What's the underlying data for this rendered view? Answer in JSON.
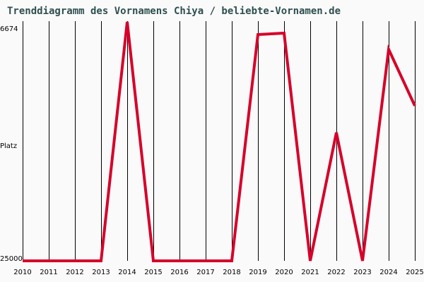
{
  "title": "Trenddiagramm des Vornamens Chiya / beliebte-Vornamen.de",
  "y_axis": {
    "top_label": "6674",
    "mid_label": "Platz",
    "bottom_label": "25000"
  },
  "colors": {
    "line": "#d6002a",
    "grid": "#000000",
    "title": "#2f4f4f",
    "background": "#fafafa"
  },
  "chart_data": {
    "type": "line",
    "title": "Trenddiagramm des Vornamens Chiya / beliebte-Vornamen.de",
    "xlabel": "",
    "ylabel": "Platz",
    "ylim": [
      25000,
      6674
    ],
    "y_inverted": true,
    "grid": "vertical",
    "categories": [
      "2010",
      "2011",
      "2012",
      "2013",
      "2014",
      "2015",
      "2016",
      "2017",
      "2018",
      "2019",
      "2020",
      "2021",
      "2022",
      "2023",
      "2024",
      "2025"
    ],
    "series": [
      {
        "name": "Chiya",
        "values": [
          25000,
          25000,
          25000,
          25000,
          6728,
          25000,
          25000,
          25000,
          25000,
          7698,
          7590,
          25000,
          15190,
          25000,
          8830,
          13142
        ]
      }
    ]
  }
}
